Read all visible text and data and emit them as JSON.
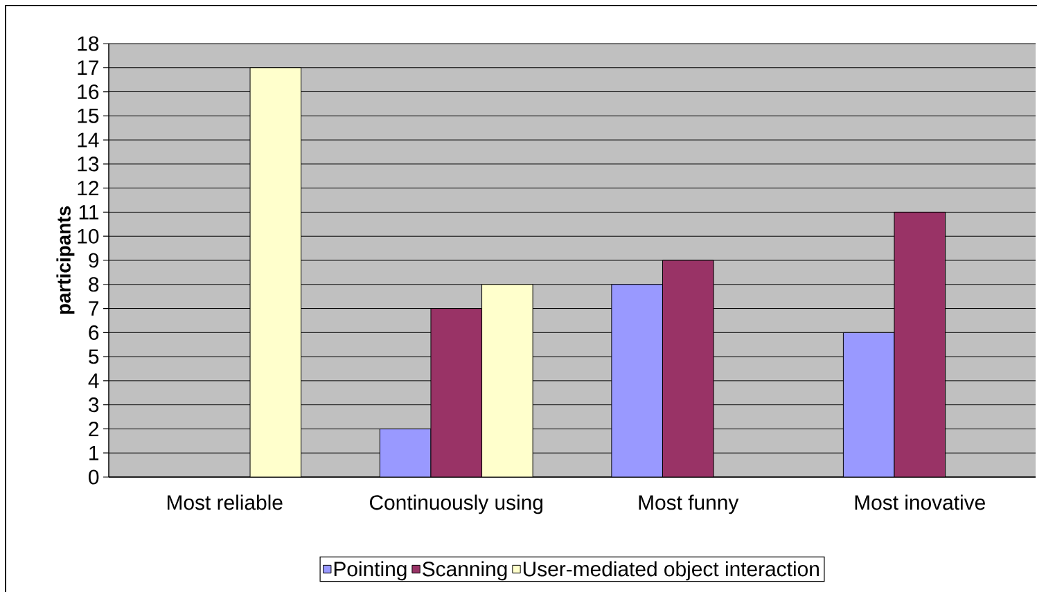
{
  "chart_data": {
    "type": "bar",
    "ylabel": "participants",
    "categories": [
      "Most reliable",
      "Continuously using",
      "Most funny",
      "Most inovative"
    ],
    "series": [
      {
        "name": "Pointing",
        "color": "#9999ff",
        "values": [
          null,
          2,
          8,
          6
        ]
      },
      {
        "name": "Scanning",
        "color": "#993366",
        "values": [
          null,
          7,
          9,
          11
        ]
      },
      {
        "name": "User-mediated object interaction",
        "color": "#ffffcc",
        "values": [
          17,
          8,
          null,
          null
        ]
      }
    ],
    "ylim": [
      0,
      18
    ],
    "yticks": [
      0,
      1,
      2,
      3,
      4,
      5,
      6,
      7,
      8,
      9,
      10,
      11,
      12,
      13,
      14,
      15,
      16,
      17,
      18
    ],
    "grid": "y",
    "legend": "bottom"
  }
}
